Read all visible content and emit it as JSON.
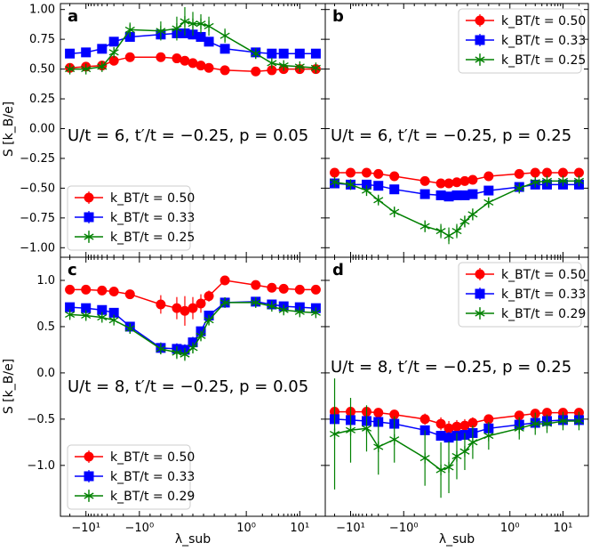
{
  "figure": {
    "colors": {
      "red": "#ff0000",
      "blue": "#0000ff",
      "green": "#008000"
    },
    "x_tick_labels": [
      "−10¹",
      "−10⁰",
      "10⁰",
      "10¹"
    ],
    "y_tick_labels_top": [
      "1.00",
      "0.75",
      "0.50",
      "0.25",
      "0.00",
      "−0.25",
      "−0.50",
      "−0.75",
      "−1.00"
    ],
    "y_tick_labels_bottom": [
      "1.0",
      "0.5",
      "0.0",
      "−0.5",
      "−1.0"
    ]
  },
  "chart_data": [
    {
      "type": "line",
      "panel": "a",
      "annotation": "U/t = 6, t′/t = −0.25, p = 0.05",
      "xlabel": "",
      "ylabel": "S [k_B/e]",
      "xscale": "symlog",
      "ylim": [
        -1.08,
        1.05
      ],
      "legend_position": "lower-left",
      "x": [
        -20,
        -10,
        -5,
        -3,
        -1.5,
        -0.6,
        -0.3,
        -0.15,
        0,
        0.15,
        0.3,
        0.6,
        1.5,
        3,
        5,
        10,
        20
      ],
      "series": [
        {
          "name": "k_BT/t = 0.50",
          "color": "red",
          "marker": "o",
          "values": [
            0.51,
            0.52,
            0.53,
            0.57,
            0.6,
            0.6,
            0.59,
            0.57,
            0.55,
            0.53,
            0.51,
            0.49,
            0.48,
            0.49,
            0.5,
            0.5,
            0.5
          ],
          "errors": [
            0.02,
            0.02,
            0.02,
            0.02,
            0.02,
            0.02,
            0.02,
            0.02,
            0.02,
            0.02,
            0.02,
            0.02,
            0.02,
            0.02,
            0.02,
            0.02,
            0.02
          ]
        },
        {
          "name": "k_BT/t = 0.33",
          "color": "blue",
          "marker": "s",
          "values": [
            0.63,
            0.64,
            0.67,
            0.73,
            0.77,
            0.79,
            0.8,
            0.8,
            0.79,
            0.77,
            0.73,
            0.67,
            0.64,
            0.63,
            0.63,
            0.63,
            0.63
          ],
          "errors": [
            0.02,
            0.02,
            0.02,
            0.02,
            0.03,
            0.03,
            0.04,
            0.04,
            0.04,
            0.04,
            0.03,
            0.02,
            0.02,
            0.02,
            0.02,
            0.02,
            0.02
          ]
        },
        {
          "name": "k_BT/t = 0.25",
          "color": "green",
          "marker": "*",
          "values": [
            0.5,
            0.5,
            0.52,
            0.64,
            0.83,
            0.82,
            0.84,
            0.9,
            0.88,
            0.88,
            0.86,
            0.78,
            0.63,
            0.55,
            0.53,
            0.52,
            0.51
          ],
          "errors": [
            0.02,
            0.02,
            0.03,
            0.04,
            0.06,
            0.08,
            0.1,
            0.12,
            0.1,
            0.08,
            0.08,
            0.06,
            0.04,
            0.03,
            0.02,
            0.02,
            0.02
          ]
        }
      ]
    },
    {
      "type": "line",
      "panel": "b",
      "annotation": "U/t = 6, t′/t = −0.25, p = 0.25",
      "xlabel": "",
      "ylabel": "",
      "xscale": "symlog",
      "ylim": [
        -1.08,
        1.05
      ],
      "legend_position": "top-right",
      "x": [
        -20,
        -10,
        -5,
        -3,
        -1.5,
        -0.6,
        -0.3,
        -0.15,
        0,
        0.15,
        0.3,
        0.6,
        1.5,
        3,
        5,
        10,
        20
      ],
      "series": [
        {
          "name": "k_BT/t = 0.50",
          "color": "red",
          "marker": "o",
          "values": [
            -0.37,
            -0.37,
            -0.37,
            -0.38,
            -0.4,
            -0.44,
            -0.46,
            -0.46,
            -0.45,
            -0.44,
            -0.43,
            -0.4,
            -0.38,
            -0.37,
            -0.37,
            -0.37,
            -0.37
          ],
          "errors": [
            0.02,
            0.02,
            0.02,
            0.02,
            0.02,
            0.02,
            0.02,
            0.02,
            0.02,
            0.02,
            0.02,
            0.02,
            0.02,
            0.02,
            0.02,
            0.02,
            0.02
          ]
        },
        {
          "name": "k_BT/t = 0.33",
          "color": "blue",
          "marker": "s",
          "values": [
            -0.46,
            -0.47,
            -0.47,
            -0.48,
            -0.51,
            -0.55,
            -0.56,
            -0.57,
            -0.56,
            -0.56,
            -0.55,
            -0.52,
            -0.49,
            -0.47,
            -0.47,
            -0.47,
            -0.47
          ],
          "errors": [
            0.02,
            0.02,
            0.02,
            0.02,
            0.02,
            0.02,
            0.03,
            0.03,
            0.03,
            0.03,
            0.03,
            0.02,
            0.02,
            0.02,
            0.02,
            0.02,
            0.02
          ]
        },
        {
          "name": "k_BT/t = 0.25",
          "color": "green",
          "marker": "*",
          "values": [
            -0.45,
            -0.47,
            -0.52,
            -0.6,
            -0.7,
            -0.82,
            -0.86,
            -0.9,
            -0.86,
            -0.78,
            -0.72,
            -0.62,
            -0.5,
            -0.45,
            -0.44,
            -0.44,
            -0.44
          ],
          "errors": [
            0.02,
            0.03,
            0.03,
            0.03,
            0.04,
            0.05,
            0.06,
            0.07,
            0.06,
            0.05,
            0.05,
            0.04,
            0.03,
            0.03,
            0.02,
            0.02,
            0.02
          ]
        }
      ]
    },
    {
      "type": "line",
      "panel": "c",
      "annotation": "U/t = 8, t′/t = −0.25, p = 0.05",
      "xlabel": "λ_sub",
      "ylabel": "S [k_B/e]",
      "xscale": "symlog",
      "ylim": [
        -1.55,
        1.25
      ],
      "legend_position": "lower-left",
      "x": [
        -20,
        -10,
        -5,
        -3,
        -1.5,
        -0.6,
        -0.3,
        -0.15,
        0,
        0.15,
        0.3,
        0.6,
        1.5,
        3,
        5,
        10,
        20
      ],
      "series": [
        {
          "name": "k_BT/t = 0.50",
          "color": "red",
          "marker": "o",
          "values": [
            0.9,
            0.9,
            0.89,
            0.88,
            0.85,
            0.74,
            0.7,
            0.67,
            0.7,
            0.75,
            0.83,
            1.0,
            0.95,
            0.92,
            0.91,
            0.9,
            0.9
          ],
          "errors": [
            0.03,
            0.03,
            0.03,
            0.03,
            0.04,
            0.1,
            0.12,
            0.16,
            0.12,
            0.1,
            0.06,
            0.05,
            0.03,
            0.03,
            0.03,
            0.03,
            0.03
          ]
        },
        {
          "name": "k_BT/t = 0.33",
          "color": "blue",
          "marker": "s",
          "values": [
            0.71,
            0.7,
            0.68,
            0.65,
            0.5,
            0.27,
            0.26,
            0.25,
            0.33,
            0.45,
            0.62,
            0.76,
            0.77,
            0.74,
            0.72,
            0.71,
            0.7
          ],
          "errors": [
            0.04,
            0.04,
            0.04,
            0.04,
            0.05,
            0.06,
            0.06,
            0.06,
            0.06,
            0.05,
            0.05,
            0.04,
            0.04,
            0.04,
            0.04,
            0.04,
            0.04
          ]
        },
        {
          "name": "k_BT/t = 0.29",
          "color": "green",
          "marker": "*",
          "values": [
            0.63,
            0.62,
            0.6,
            0.57,
            0.48,
            0.26,
            0.22,
            0.2,
            0.27,
            0.4,
            0.57,
            0.76,
            0.76,
            0.72,
            0.68,
            0.66,
            0.65
          ],
          "errors": [
            0.04,
            0.04,
            0.04,
            0.04,
            0.05,
            0.06,
            0.07,
            0.07,
            0.06,
            0.05,
            0.05,
            0.04,
            0.04,
            0.04,
            0.04,
            0.04,
            0.04
          ]
        }
      ]
    },
    {
      "type": "line",
      "panel": "d",
      "annotation": "U/t = 8, t′/t = −0.25, p = 0.25",
      "xlabel": "λ_sub",
      "ylabel": "",
      "xscale": "symlog",
      "ylim": [
        -1.55,
        1.25
      ],
      "legend_position": "top-right",
      "x": [
        -20,
        -10,
        -5,
        -3,
        -1.5,
        -0.6,
        -0.3,
        -0.15,
        0,
        0.15,
        0.3,
        0.6,
        1.5,
        3,
        5,
        10,
        20
      ],
      "series": [
        {
          "name": "k_BT/t = 0.50",
          "color": "red",
          "marker": "o",
          "values": [
            -0.42,
            -0.42,
            -0.42,
            -0.43,
            -0.45,
            -0.5,
            -0.55,
            -0.6,
            -0.58,
            -0.57,
            -0.54,
            -0.5,
            -0.46,
            -0.44,
            -0.43,
            -0.43,
            -0.43
          ],
          "errors": [
            0.04,
            0.04,
            0.04,
            0.04,
            0.05,
            0.06,
            0.07,
            0.08,
            0.07,
            0.07,
            0.06,
            0.05,
            0.05,
            0.04,
            0.04,
            0.04,
            0.04
          ]
        },
        {
          "name": "k_BT/t = 0.33",
          "color": "blue",
          "marker": "s",
          "values": [
            -0.5,
            -0.51,
            -0.52,
            -0.53,
            -0.55,
            -0.62,
            -0.68,
            -0.7,
            -0.68,
            -0.67,
            -0.65,
            -0.6,
            -0.56,
            -0.54,
            -0.52,
            -0.51,
            -0.51
          ],
          "errors": [
            0.03,
            0.03,
            0.03,
            0.03,
            0.04,
            0.05,
            0.05,
            0.06,
            0.05,
            0.05,
            0.05,
            0.04,
            0.04,
            0.04,
            0.03,
            0.03,
            0.03
          ]
        },
        {
          "name": "k_BT/t = 0.29",
          "color": "green",
          "marker": "*",
          "values": [
            -0.66,
            -0.62,
            -0.6,
            -0.8,
            -0.72,
            -0.92,
            -1.05,
            -1.02,
            -0.9,
            -0.85,
            -0.75,
            -0.68,
            -0.6,
            -0.55,
            -0.55,
            -0.52,
            -0.52
          ],
          "errors": [
            0.6,
            0.35,
            0.25,
            0.3,
            0.25,
            0.3,
            0.3,
            0.28,
            0.25,
            0.2,
            0.18,
            0.15,
            0.12,
            0.12,
            0.1,
            0.1,
            0.1
          ]
        }
      ]
    }
  ]
}
